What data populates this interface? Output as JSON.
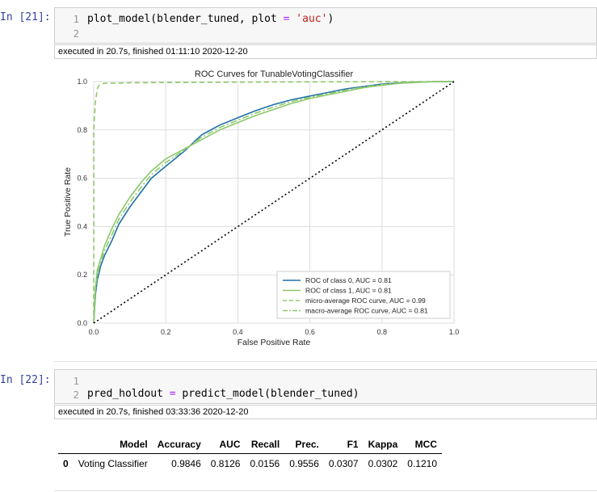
{
  "cells": [
    {
      "prompt": "In [21]:",
      "lines": [
        {
          "no": "1"
        },
        {
          "no": "2"
        }
      ],
      "code": {
        "fn": "plot_model(blender_tuned, plot ",
        "eq": "=",
        "space": " ",
        "str": "'auc'",
        "close": ")"
      },
      "exec": "executed in 20.7s, finished 01:11:10 2020-12-20"
    },
    {
      "prompt": "In [22]:",
      "lines": [
        {
          "no": "1"
        },
        {
          "no": "2"
        }
      ],
      "code": {
        "var": "pred_holdout ",
        "eq": "=",
        "rest": " predict_model(blender_tuned)"
      },
      "exec": "executed in 20.7s, finished 03:33:36 2020-12-20"
    }
  ],
  "chart_data": {
    "type": "line",
    "title": "ROC Curves for TunableVotingClassifier",
    "xlabel": "False Positive Rate",
    "ylabel": "True Positive Rate",
    "xlim": [
      0.0,
      1.0
    ],
    "ylim": [
      0.0,
      1.0
    ],
    "xticks": [
      "0.0",
      "0.2",
      "0.4",
      "0.6",
      "0.8",
      "1.0"
    ],
    "yticks": [
      "0.0",
      "0.2",
      "0.4",
      "0.6",
      "0.8",
      "1.0"
    ],
    "grid": true,
    "legend_position": "lower-right",
    "series": [
      {
        "name": "ROC of class 0, AUC = 0.81",
        "color": "#1f6fa8",
        "style": "solid",
        "x": [
          0,
          0.005,
          0.01,
          0.02,
          0.03,
          0.05,
          0.07,
          0.1,
          0.13,
          0.16,
          0.2,
          0.25,
          0.3,
          0.35,
          0.4,
          0.45,
          0.5,
          0.55,
          0.6,
          0.65,
          0.7,
          0.75,
          0.8,
          0.85,
          0.9,
          0.95,
          1.0
        ],
        "y": [
          0,
          0.12,
          0.18,
          0.24,
          0.28,
          0.34,
          0.41,
          0.48,
          0.54,
          0.6,
          0.65,
          0.71,
          0.78,
          0.82,
          0.85,
          0.88,
          0.905,
          0.925,
          0.94,
          0.955,
          0.97,
          0.98,
          0.99,
          0.995,
          0.998,
          1.0,
          1.0
        ]
      },
      {
        "name": "ROC of class 1, AUC = 0.81",
        "color": "#8dc86a",
        "style": "solid",
        "x": [
          0,
          0.005,
          0.01,
          0.02,
          0.03,
          0.05,
          0.07,
          0.1,
          0.13,
          0.16,
          0.2,
          0.25,
          0.3,
          0.35,
          0.4,
          0.45,
          0.5,
          0.55,
          0.6,
          0.65,
          0.7,
          0.75,
          0.8,
          0.85,
          0.9,
          0.95,
          1.0
        ],
        "y": [
          0,
          0.15,
          0.22,
          0.27,
          0.32,
          0.39,
          0.45,
          0.52,
          0.58,
          0.63,
          0.68,
          0.72,
          0.76,
          0.8,
          0.83,
          0.86,
          0.885,
          0.91,
          0.93,
          0.945,
          0.96,
          0.975,
          0.985,
          0.993,
          0.997,
          1.0,
          1.0
        ]
      },
      {
        "name": "micro-average ROC curve, AUC = 0.99",
        "color": "#8dc86a",
        "style": "dashed",
        "x": [
          0,
          0.0,
          0.005,
          0.01,
          0.015,
          0.02,
          0.03,
          0.1,
          0.3,
          0.6,
          0.9,
          1.0
        ],
        "y": [
          0,
          0.8,
          0.92,
          0.97,
          0.985,
          0.99,
          0.993,
          0.995,
          0.997,
          0.999,
          1.0,
          1.0
        ]
      },
      {
        "name": "macro-average ROC curve, AUC = 0.81",
        "color": "#8dc86a",
        "style": "dashdot",
        "x": [
          0,
          0.005,
          0.01,
          0.02,
          0.03,
          0.05,
          0.07,
          0.1,
          0.13,
          0.16,
          0.2,
          0.25,
          0.3,
          0.35,
          0.4,
          0.45,
          0.5,
          0.55,
          0.6,
          0.65,
          0.7,
          0.75,
          0.8,
          0.85,
          0.9,
          0.95,
          1.0
        ],
        "y": [
          0,
          0.135,
          0.2,
          0.255,
          0.3,
          0.365,
          0.43,
          0.5,
          0.56,
          0.615,
          0.665,
          0.715,
          0.77,
          0.81,
          0.84,
          0.87,
          0.895,
          0.918,
          0.935,
          0.95,
          0.965,
          0.978,
          0.988,
          0.994,
          0.998,
          1.0,
          1.0
        ]
      },
      {
        "name": "",
        "color": "#000000",
        "style": "dotted",
        "x": [
          0,
          1
        ],
        "y": [
          0,
          1
        ]
      }
    ]
  },
  "table": {
    "columns": [
      "",
      "Model",
      "Accuracy",
      "AUC",
      "Recall",
      "Prec.",
      "F1",
      "Kappa",
      "MCC"
    ],
    "rows": [
      [
        "0",
        "Voting Classifier",
        "0.9846",
        "0.8126",
        "0.0156",
        "0.9556",
        "0.0307",
        "0.0302",
        "0.1210"
      ]
    ]
  }
}
